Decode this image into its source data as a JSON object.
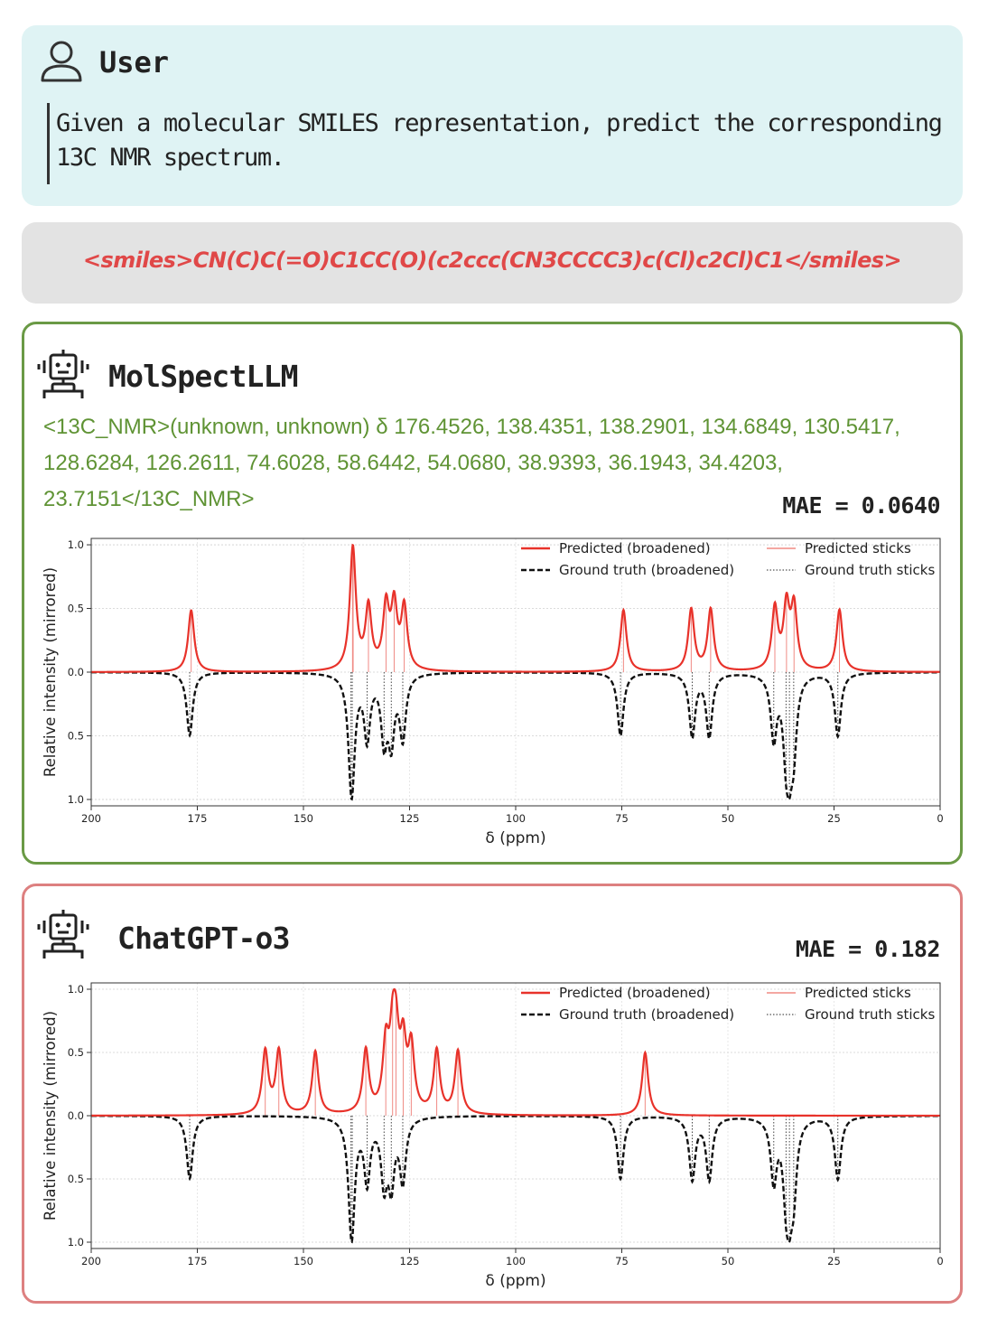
{
  "user": {
    "title": "User",
    "question": "Given a molecular SMILES representation, predict the corresponding 13C NMR spectrum."
  },
  "smiles": "<smiles>CN(C)C(=O)C1CC(O)(c2ccc(CN3CCCC3)c(Cl)c2Cl)C1</smiles>",
  "models": [
    {
      "name": "MolSpectLLM",
      "prediction": "<13C_NMR>(unknown, unknown) δ 176.4526, 138.4351, 138.2901, 134.6849, 130.5417, 128.6284, 126.2611, 74.6028, 58.6442, 54.0680, 38.9393, 36.1943, 34.4203, 23.7151</13C_NMR>",
      "mae_label": "MAE = 0.0640"
    },
    {
      "name": "ChatGPT-o3",
      "mae_label": "MAE = 0.182"
    }
  ],
  "colors": {
    "predicted": "#e8322a",
    "ground_truth": "#111111",
    "good_border": "#6a9a45",
    "bad_border": "#dd8080"
  },
  "chart_data": [
    {
      "type": "line",
      "xlabel": "δ (ppm)",
      "ylabel": "Relative intensity (mirrored)",
      "xlim": [
        200,
        0
      ],
      "ylim": [
        -1.05,
        1.05
      ],
      "xticks": [
        200,
        175,
        150,
        125,
        100,
        75,
        50,
        25,
        0
      ],
      "yticks": [
        {
          "v": 1.0,
          "label": "1.0"
        },
        {
          "v": 0.5,
          "label": "0.5"
        },
        {
          "v": 0.0,
          "label": "0.0"
        },
        {
          "v": -0.5,
          "label": "0.5"
        },
        {
          "v": -1.0,
          "label": "1.0"
        }
      ],
      "grid": true,
      "legend_position": "top-right",
      "legend": [
        "Predicted (broadened)",
        "Ground truth (broadened)",
        "Predicted sticks",
        "Ground truth sticks"
      ],
      "series": [
        {
          "name": "Predicted (broadened)",
          "style": "solid",
          "sign": 1,
          "shifts": [
            176.4526,
            138.4351,
            138.2901,
            134.6849,
            130.5417,
            128.6284,
            126.2611,
            74.6028,
            58.6442,
            54.068,
            38.9393,
            36.1943,
            34.4203,
            23.7151
          ]
        },
        {
          "name": "Ground truth (broadened)",
          "style": "dashed",
          "sign": -1,
          "shifts": [
            176.8,
            138.8,
            138.5,
            135.0,
            131.0,
            129.3,
            126.6,
            75.3,
            58.4,
            54.4,
            39.2,
            36.3,
            35.5,
            34.5,
            24.1
          ]
        }
      ]
    },
    {
      "type": "line",
      "xlabel": "δ (ppm)",
      "ylabel": "Relative intensity (mirrored)",
      "xlim": [
        200,
        0
      ],
      "ylim": [
        -1.05,
        1.05
      ],
      "xticks": [
        200,
        175,
        150,
        125,
        100,
        75,
        50,
        25,
        0
      ],
      "yticks": [
        {
          "v": 1.0,
          "label": "1.0"
        },
        {
          "v": 0.5,
          "label": "0.5"
        },
        {
          "v": 0.0,
          "label": "0.0"
        },
        {
          "v": -0.5,
          "label": "0.5"
        },
        {
          "v": -1.0,
          "label": "1.0"
        }
      ],
      "grid": true,
      "legend_position": "top-right",
      "legend": [
        "Predicted (broadened)",
        "Ground truth (broadened)",
        "Predicted sticks",
        "Ground truth sticks"
      ],
      "series": [
        {
          "name": "Predicted (broadened)",
          "style": "solid",
          "sign": 1,
          "shifts": [
            159.0,
            155.8,
            147.2,
            135.3,
            130.6,
            129.0,
            128.2,
            126.5,
            124.6,
            118.6,
            113.6,
            69.5
          ]
        },
        {
          "name": "Ground truth (broadened)",
          "style": "dashed",
          "sign": -1,
          "shifts": [
            176.8,
            138.8,
            138.5,
            135.0,
            131.0,
            129.3,
            126.6,
            75.3,
            58.4,
            54.4,
            39.2,
            36.3,
            35.5,
            34.5,
            24.1
          ]
        }
      ]
    }
  ]
}
